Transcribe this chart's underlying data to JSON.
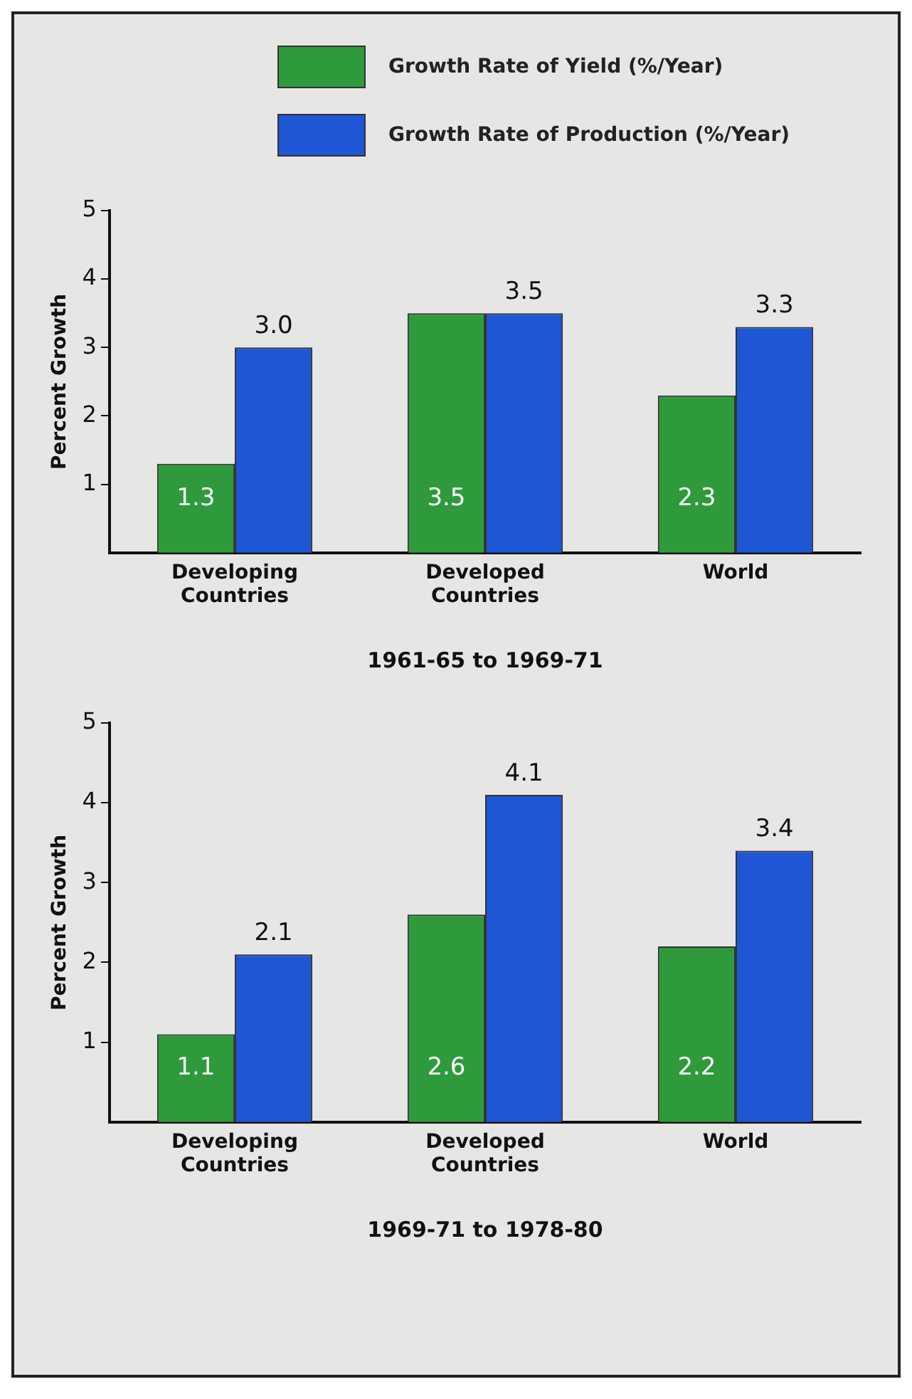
{
  "chart_data": [
    {
      "type": "bar",
      "xlabel": "1961-65 to 1969-71",
      "ylabel": "Percent Growth",
      "categories": [
        "Developing Countries",
        "Developed Countries",
        "World"
      ],
      "series": [
        {
          "name": "Growth Rate of Yield (%/Year)",
          "color": "#2e9a3c",
          "values": [
            1.3,
            3.5,
            2.3
          ],
          "value_labels": [
            "1.3",
            "3.5",
            "2.3"
          ]
        },
        {
          "name": "Growth Rate of Production (%/Year)",
          "color": "#1f56d6",
          "values": [
            3.0,
            3.5,
            3.3
          ],
          "value_labels": [
            "3.0",
            "3.5",
            "3.3"
          ]
        }
      ],
      "ylim": [
        0,
        5
      ],
      "yticks": [
        1,
        2,
        3,
        4,
        5
      ],
      "grid": false,
      "legend": "top"
    },
    {
      "type": "bar",
      "xlabel": "1969-71 to 1978-80",
      "ylabel": "Percent Growth",
      "categories": [
        "Developing Countries",
        "Developed Countries",
        "World"
      ],
      "series": [
        {
          "color": "#2e9a3c",
          "values": [
            1.1,
            2.6,
            2.2
          ],
          "value_labels": [
            "1.1",
            "2.6",
            "2.2"
          ]
        },
        {
          "color": "#1f56d6",
          "values": [
            2.1,
            4.1,
            3.4
          ],
          "value_labels": [
            "2.1",
            "4.1",
            "3.4"
          ]
        }
      ],
      "ylim": [
        0,
        5
      ],
      "yticks": [
        1,
        2,
        3,
        4,
        5
      ],
      "grid": false
    }
  ]
}
